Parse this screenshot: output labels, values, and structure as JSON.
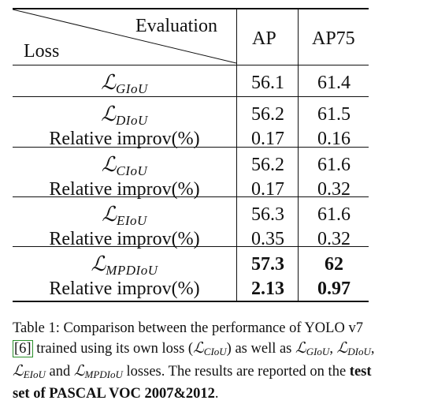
{
  "table": {
    "header": {
      "evaluation": "Evaluation",
      "loss": "Loss",
      "ap": "AP",
      "ap75": "AP75"
    },
    "rows": [
      {
        "label_type": "loss",
        "loss_sub": "GIoU",
        "ap": "56.1",
        "ap75": "61.4",
        "bold": false
      },
      {
        "label_type": "loss",
        "loss_sub": "DIoU",
        "ap": "56.2",
        "ap75": "61.5",
        "bold": false
      },
      {
        "label_type": "text",
        "label": "Relative improv(%)",
        "ap": "0.17",
        "ap75": "0.16",
        "bold": false
      },
      {
        "label_type": "loss",
        "loss_sub": "CIoU",
        "ap": "56.2",
        "ap75": "61.6",
        "bold": false
      },
      {
        "label_type": "text",
        "label": "Relative improv(%)",
        "ap": "0.17",
        "ap75": "0.32",
        "bold": false
      },
      {
        "label_type": "loss",
        "loss_sub": "EIoU",
        "ap": "56.3",
        "ap75": "61.6",
        "bold": false
      },
      {
        "label_type": "text",
        "label": "Relative improv(%)",
        "ap": "0.35",
        "ap75": "0.32",
        "bold": false
      },
      {
        "label_type": "loss",
        "loss_sub": "MPDIoU",
        "ap": "57.3",
        "ap75": "62",
        "bold": true
      },
      {
        "label_type": "text",
        "label": "Relative improv(%)",
        "ap": "2.13",
        "ap75": "0.97",
        "bold": true
      }
    ],
    "loss_symbol": "ℒ"
  },
  "caption": {
    "t1": "Table 1: Comparison between the performance of YOLO v7",
    "ref": "6",
    "t2": " trained using its own loss (",
    "s_ciou": "CIoU",
    "t3": ") as well as ",
    "s_giou": "GIoU",
    "t4": ", ",
    "s_diou": "DIoU",
    "t5": ",",
    "s_eiou": "EIoU",
    "t6": " and ",
    "s_mpdiou": "MPDIoU",
    "t7": " losses. The results are reported on the ",
    "bold1": "test",
    "bold2": "set of PASCAL VOC 2007&2012",
    "t8": "."
  }
}
